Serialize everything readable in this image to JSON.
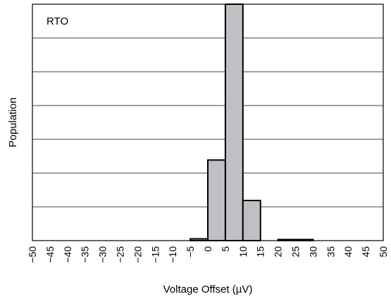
{
  "chart_data": {
    "type": "bar",
    "annotation": "RTO",
    "xlabel": "Voltage Offset (µV)",
    "ylabel": "Population",
    "xlim": [
      -50,
      50
    ],
    "x_ticks": [
      "−50",
      "−45",
      "−40",
      "−35",
      "−30",
      "−25",
      "−20",
      "−15",
      "−10",
      "−5",
      "0",
      "5",
      "10",
      "15",
      "20",
      "25",
      "30",
      "35",
      "40",
      "45",
      "50"
    ],
    "ylim": [
      0,
      6.6
    ],
    "grid": true,
    "bins": [
      {
        "start": -5,
        "end": 0,
        "value": 0.05
      },
      {
        "start": 0,
        "end": 5,
        "value": 2.25
      },
      {
        "start": 5,
        "end": 10,
        "value": 6.6
      },
      {
        "start": 10,
        "end": 15,
        "value": 1.12
      },
      {
        "start": 20,
        "end": 25,
        "value": 0.03
      },
      {
        "start": 25,
        "end": 30,
        "value": 0.03
      }
    ],
    "colors": {
      "bar_fill": "#bfc0c4",
      "bar_stroke": "#000000",
      "grid": "#000000"
    }
  }
}
